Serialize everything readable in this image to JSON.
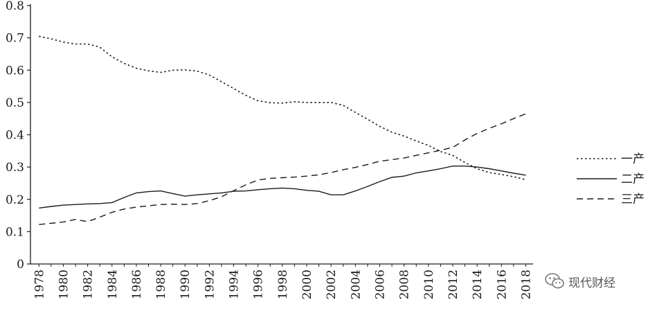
{
  "chart_data": {
    "type": "line",
    "title": "",
    "xlabel": "",
    "ylabel": "",
    "ylim": [
      0,
      0.8
    ],
    "yticks": [
      "0",
      "0.1",
      "0.2",
      "0.3",
      "0.4",
      "0.5",
      "0.6",
      "0.7",
      "0.8"
    ],
    "xticks": [
      "1978",
      "1980",
      "1982",
      "1984",
      "1986",
      "1988",
      "1990",
      "1992",
      "1994",
      "1996",
      "1998",
      "2000",
      "2002",
      "2004",
      "2006",
      "2008",
      "2010",
      "2012",
      "2014",
      "2016",
      "2018"
    ],
    "x": [
      1978,
      1979,
      1980,
      1981,
      1982,
      1983,
      1984,
      1985,
      1986,
      1987,
      1988,
      1989,
      1990,
      1991,
      1992,
      1993,
      1994,
      1995,
      1996,
      1997,
      1998,
      1999,
      2000,
      2001,
      2002,
      2003,
      2004,
      2005,
      2006,
      2007,
      2008,
      2009,
      2010,
      2011,
      2012,
      2013,
      2014,
      2015,
      2016,
      2017,
      2018
    ],
    "series": [
      {
        "name": "一产",
        "style": "dotted",
        "values": [
          0.705,
          0.697,
          0.687,
          0.681,
          0.681,
          0.671,
          0.641,
          0.621,
          0.606,
          0.598,
          0.593,
          0.6,
          0.601,
          0.597,
          0.585,
          0.564,
          0.543,
          0.522,
          0.505,
          0.499,
          0.498,
          0.502,
          0.5,
          0.5,
          0.5,
          0.491,
          0.469,
          0.448,
          0.426,
          0.408,
          0.396,
          0.381,
          0.367,
          0.348,
          0.336,
          0.314,
          0.295,
          0.283,
          0.277,
          0.27,
          0.261
        ]
      },
      {
        "name": "二产",
        "style": "solid",
        "values": [
          0.173,
          0.178,
          0.182,
          0.184,
          0.186,
          0.187,
          0.19,
          0.206,
          0.22,
          0.224,
          0.226,
          0.218,
          0.21,
          0.214,
          0.217,
          0.22,
          0.225,
          0.226,
          0.23,
          0.233,
          0.235,
          0.233,
          0.228,
          0.225,
          0.214,
          0.214,
          0.226,
          0.24,
          0.255,
          0.268,
          0.272,
          0.282,
          0.288,
          0.295,
          0.303,
          0.303,
          0.3,
          0.295,
          0.288,
          0.281,
          0.275
        ]
      },
      {
        "name": "三产",
        "style": "dashed",
        "values": [
          0.122,
          0.126,
          0.13,
          0.138,
          0.131,
          0.145,
          0.16,
          0.17,
          0.176,
          0.18,
          0.184,
          0.185,
          0.184,
          0.187,
          0.196,
          0.208,
          0.227,
          0.245,
          0.26,
          0.265,
          0.267,
          0.269,
          0.272,
          0.276,
          0.283,
          0.292,
          0.299,
          0.308,
          0.318,
          0.323,
          0.328,
          0.336,
          0.344,
          0.352,
          0.361,
          0.384,
          0.404,
          0.42,
          0.434,
          0.45,
          0.465
        ]
      }
    ],
    "legend_position": "right",
    "grid": false
  },
  "watermark": {
    "text": "现代财经"
  }
}
